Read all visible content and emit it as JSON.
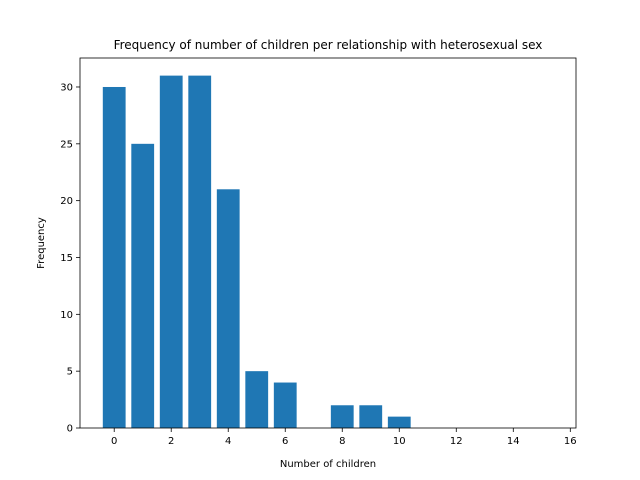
{
  "chart_data": {
    "type": "bar",
    "title": "Frequency of number of children per relationship with heterosexual sex",
    "xlabel": "Number of children",
    "ylabel": "Frequency",
    "x": [
      0,
      1,
      2,
      3,
      4,
      5,
      6,
      8,
      9,
      10
    ],
    "values": [
      30,
      25,
      31,
      31,
      21,
      5,
      4,
      2,
      2,
      1
    ],
    "xlim": [
      -1.2,
      16.2
    ],
    "ylim": [
      0,
      32.55
    ],
    "xticks": [
      0,
      2,
      4,
      6,
      8,
      10,
      12,
      14,
      16
    ],
    "yticks": [
      0,
      5,
      10,
      15,
      20,
      25,
      30
    ],
    "bar_color": "#1f77b4",
    "grid": false,
    "legend": "none"
  }
}
